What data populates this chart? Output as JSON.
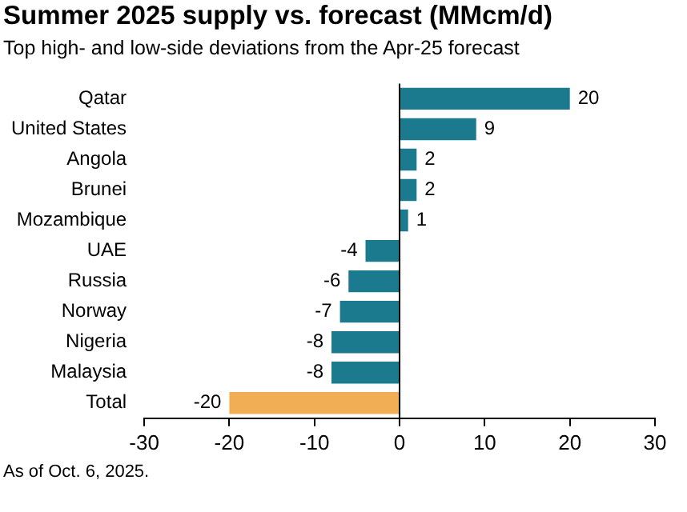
{
  "chart_data": {
    "type": "bar",
    "orientation": "horizontal",
    "title": "Summer 2025 supply vs. forecast (MMcm/d)",
    "subtitle": "Top high- and low-side deviations from the Apr-25 forecast",
    "categories": [
      "Qatar",
      "United States",
      "Angola",
      "Brunei",
      "Mozambique",
      "UAE",
      "Russia",
      "Norway",
      "Nigeria",
      "Malaysia",
      "Total"
    ],
    "values": [
      20,
      9,
      2,
      2,
      1,
      -4,
      -6,
      -7,
      -8,
      -8,
      -20
    ],
    "colors": [
      "#1b7a8e",
      "#1b7a8e",
      "#1b7a8e",
      "#1b7a8e",
      "#1b7a8e",
      "#1b7a8e",
      "#1b7a8e",
      "#1b7a8e",
      "#1b7a8e",
      "#1b7a8e",
      "#f2ae55"
    ],
    "data_labels": true,
    "ref_lines": [
      {
        "axis": "x",
        "value": 0,
        "color": "#000000"
      }
    ],
    "xlim": [
      -30,
      30
    ],
    "xticks": [
      -30,
      -20,
      -10,
      0,
      10,
      20,
      30
    ],
    "grid": false,
    "legend": false,
    "annotations": [
      "As of Oct. 6, 2025."
    ]
  }
}
